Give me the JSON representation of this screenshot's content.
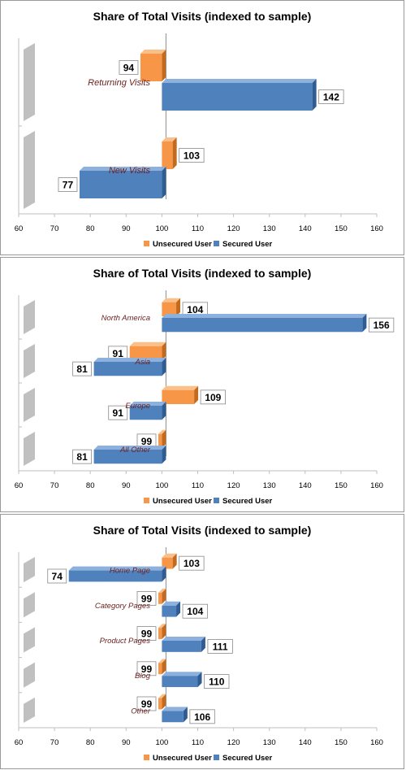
{
  "colors": {
    "unsecured": "#F79646",
    "unsecured_dark": "#C26A1E",
    "unsecured_top": "#FBBF8A",
    "secured": "#4F81BD",
    "secured_dark": "#2F5C93",
    "secured_top": "#8DB0DD",
    "category_label": "#6B1F1F"
  },
  "chart_data": [
    {
      "type": "bar",
      "orientation": "horizontal",
      "title": "Share of Total Visits (indexed to sample)",
      "categories": [
        "Returning Visits",
        "New Visits"
      ],
      "series": [
        {
          "name": "Unsecured User",
          "values": [
            94,
            103
          ]
        },
        {
          "name": "Secured User",
          "values": [
            142,
            77
          ]
        }
      ],
      "xlim": [
        60,
        160
      ],
      "xticks": [
        "60",
        "70",
        "80",
        "90",
        "100",
        "110",
        "120",
        "130",
        "140",
        "150",
        "160"
      ],
      "baseline": 100,
      "legend": "bottom"
    },
    {
      "type": "bar",
      "orientation": "horizontal",
      "title": "Share of Total Visits (indexed to sample)",
      "categories": [
        "North America",
        "Asia",
        "Europe",
        "All Other"
      ],
      "series": [
        {
          "name": "Unsecured User",
          "values": [
            104,
            91,
            109,
            99
          ]
        },
        {
          "name": "Secured User",
          "values": [
            156,
            81,
            91,
            81
          ]
        }
      ],
      "xlim": [
        60,
        160
      ],
      "xticks": [
        "60",
        "70",
        "80",
        "90",
        "100",
        "110",
        "120",
        "130",
        "140",
        "150",
        "160"
      ],
      "baseline": 100,
      "legend": "bottom"
    },
    {
      "type": "bar",
      "orientation": "horizontal",
      "title": "Share of Total Visits (indexed to sample)",
      "categories": [
        "Home Page",
        "Category Pages",
        "Product Pages",
        "Blog",
        "Other"
      ],
      "series": [
        {
          "name": "Unsecured User",
          "values": [
            103,
            99,
            99,
            99,
            99
          ]
        },
        {
          "name": "Secured User",
          "values": [
            74,
            104,
            111,
            110,
            106
          ]
        }
      ],
      "xlim": [
        60,
        160
      ],
      "xticks": [
        "60",
        "70",
        "80",
        "90",
        "100",
        "110",
        "120",
        "130",
        "140",
        "150",
        "160"
      ],
      "baseline": 100,
      "legend": "bottom"
    }
  ]
}
